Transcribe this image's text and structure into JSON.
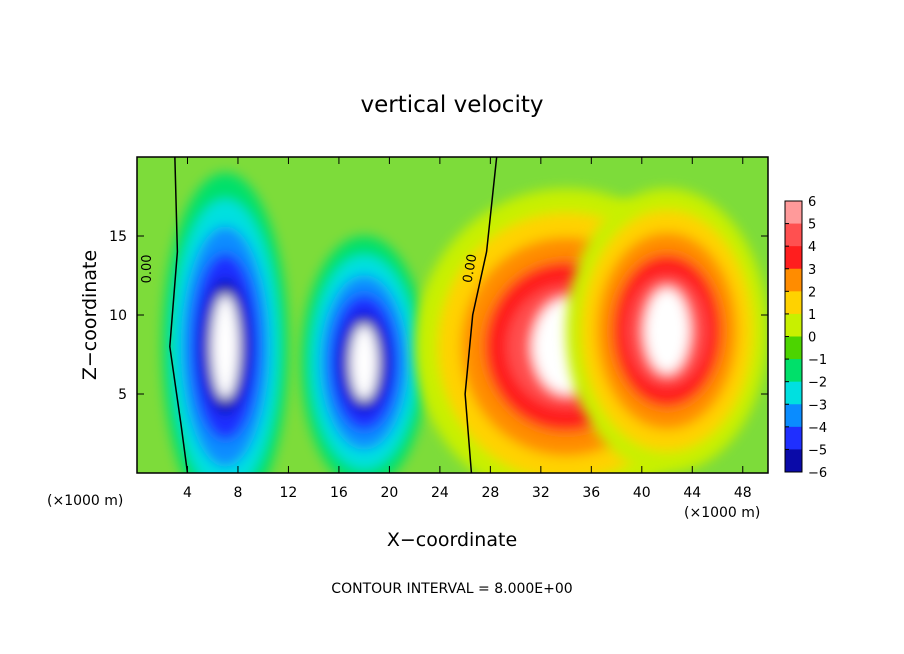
{
  "chart_data": {
    "type": "heatmap",
    "title": "vertical velocity",
    "xlabel": "X−coordinate",
    "ylabel": "Z−coordinate",
    "x_unit_left": "(×1000 m)",
    "x_unit_right": "(×1000 m)",
    "footer": "CONTOUR INTERVAL = 8.000E+00",
    "xlim": [
      0,
      50
    ],
    "ylim": [
      0,
      20
    ],
    "x_ticks": [
      4,
      8,
      12,
      16,
      20,
      24,
      28,
      32,
      36,
      40,
      44,
      48
    ],
    "x_tick_labels": [
      "4",
      "8",
      "12",
      "16",
      "20",
      "24",
      "28",
      "32",
      "36",
      "40",
      "44",
      "48"
    ],
    "y_ticks": [
      5,
      10,
      15
    ],
    "y_tick_labels": [
      "5",
      "10",
      "15"
    ],
    "contour_labels": [
      "0.00",
      "0.00"
    ],
    "colorbar": {
      "levels": [
        6,
        5,
        4,
        3,
        2,
        1,
        0,
        -1,
        -2,
        -3,
        -4,
        -5,
        -6
      ],
      "labels": [
        "6",
        "5",
        "4",
        "3",
        "2",
        "1",
        "0",
        "−1",
        "−2",
        "−3",
        "−4",
        "−5",
        "−6"
      ],
      "colors": [
        "#ff9a9a",
        "#ff5050",
        "#ff1e1e",
        "#ff8c00",
        "#ffd200",
        "#c8f000",
        "#4cd400",
        "#00e06a",
        "#00e0e0",
        "#0a8cff",
        "#1f2fff",
        "#0a0aa8",
        "#7a00b4"
      ]
    },
    "updrafts": [
      {
        "x": 34,
        "z": 8,
        "w": 12,
        "h": 10,
        "peak": 8
      },
      {
        "x": 42,
        "z": 9,
        "w": 8,
        "h": 9,
        "peak": 8
      }
    ],
    "downdrafts": [
      {
        "x": 7,
        "z": 8,
        "w": 5,
        "h": 11,
        "peak": -8
      },
      {
        "x": 18,
        "z": 7,
        "w": 5,
        "h": 8,
        "peak": -7
      }
    ]
  }
}
